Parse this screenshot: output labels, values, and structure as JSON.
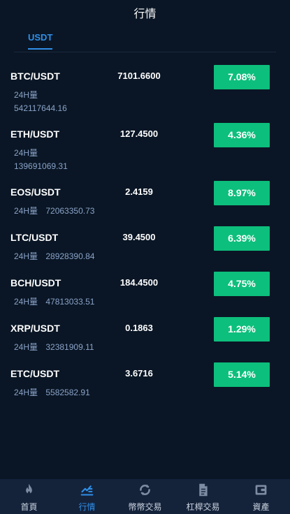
{
  "header": {
    "title": "行情"
  },
  "tabs": [
    {
      "label": "USDT",
      "active": true
    }
  ],
  "markets": [
    {
      "pair": "BTC/USDT",
      "price": "7101.6600",
      "vol_label": "24H量",
      "vol_value": "542117644.16",
      "change": "7.08%"
    },
    {
      "pair": "ETH/USDT",
      "price": "127.4500",
      "vol_label": "24H量",
      "vol_value": "139691069.31",
      "change": "4.36%"
    },
    {
      "pair": "EOS/USDT",
      "price": "2.4159",
      "vol_label": "24H量",
      "vol_value": "72063350.73",
      "change": "8.97%"
    },
    {
      "pair": "LTC/USDT",
      "price": "39.4500",
      "vol_label": "24H量",
      "vol_value": "28928390.84",
      "change": "6.39%"
    },
    {
      "pair": "BCH/USDT",
      "price": "184.4500",
      "vol_label": "24H量",
      "vol_value": "47813033.51",
      "change": "4.75%"
    },
    {
      "pair": "XRP/USDT",
      "price": "0.1863",
      "vol_label": "24H量",
      "vol_value": "32381909.11",
      "change": "1.29%"
    },
    {
      "pair": "ETC/USDT",
      "price": "3.6716",
      "vol_label": "24H量",
      "vol_value": "5582582.91",
      "change": "5.14%"
    }
  ],
  "nav": [
    {
      "label": "首頁",
      "icon": "flame-icon"
    },
    {
      "label": "行情",
      "icon": "market-chart-icon",
      "active": true
    },
    {
      "label": "幣幣交易",
      "icon": "exchange-icon"
    },
    {
      "label": "杠桿交易",
      "icon": "document-icon"
    },
    {
      "label": "資產",
      "icon": "wallet-icon"
    }
  ],
  "colors": {
    "background": "#0a1625",
    "accent": "#2f8fe8",
    "up": "#0dbf7c",
    "nav_background": "#14223a"
  }
}
